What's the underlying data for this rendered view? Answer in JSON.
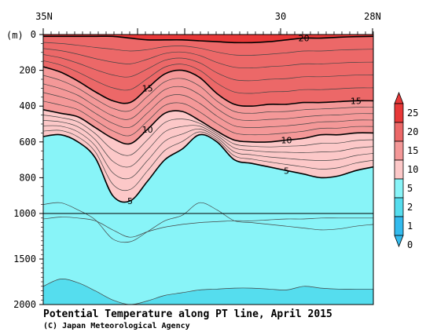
{
  "chart_data": {
    "type": "heatmap",
    "title": "Potential Temperature along PT line, April 2015",
    "credit": "(C) Japan Meteorological Agency",
    "y_unit_label": "(m)",
    "x_tick_labels": [
      "35N",
      "30",
      "28N"
    ],
    "y_ticks": [
      0,
      200,
      400,
      600,
      800,
      1000,
      1500,
      2000
    ],
    "y_tick_labels": [
      "0",
      "200",
      "400",
      "600",
      "800",
      "1000",
      "1500",
      "2000"
    ],
    "contour_labels": [
      "20",
      "15",
      "15",
      "10",
      "10",
      "5",
      "5"
    ],
    "colorbar": {
      "labels": [
        "25",
        "20",
        "15",
        "10",
        "5",
        "2",
        "1",
        "0"
      ],
      "levels": [
        0,
        1,
        2,
        5,
        10,
        15,
        20,
        25
      ],
      "colors": [
        "#33bbee",
        "#55ddee",
        "#88f4f8",
        "#fcc8c8",
        "#f49898",
        "#ec6868",
        "#e83838"
      ]
    },
    "series": [
      {
        "name": "5",
        "depth_m": [
          570,
          560,
          600,
          690,
          900,
          930,
          820,
          700,
          640,
          560,
          600,
          700,
          720,
          740,
          760,
          780,
          800,
          790,
          760,
          740
        ]
      },
      {
        "name": "10",
        "depth_m": [
          420,
          440,
          460,
          520,
          580,
          610,
          530,
          440,
          430,
          480,
          540,
          590,
          600,
          600,
          590,
          580,
          560,
          560,
          550,
          550
        ]
      },
      {
        "name": "15",
        "depth_m": [
          180,
          210,
          260,
          320,
          370,
          380,
          300,
          220,
          200,
          240,
          330,
          390,
          400,
          390,
          390,
          380,
          380,
          375,
          370,
          370
        ]
      },
      {
        "name": "20",
        "depth_m": [
          10,
          10,
          10,
          10,
          10,
          20,
          30,
          30,
          30,
          35,
          40,
          45,
          45,
          40,
          30,
          20,
          20,
          15,
          12,
          10
        ]
      }
    ]
  }
}
